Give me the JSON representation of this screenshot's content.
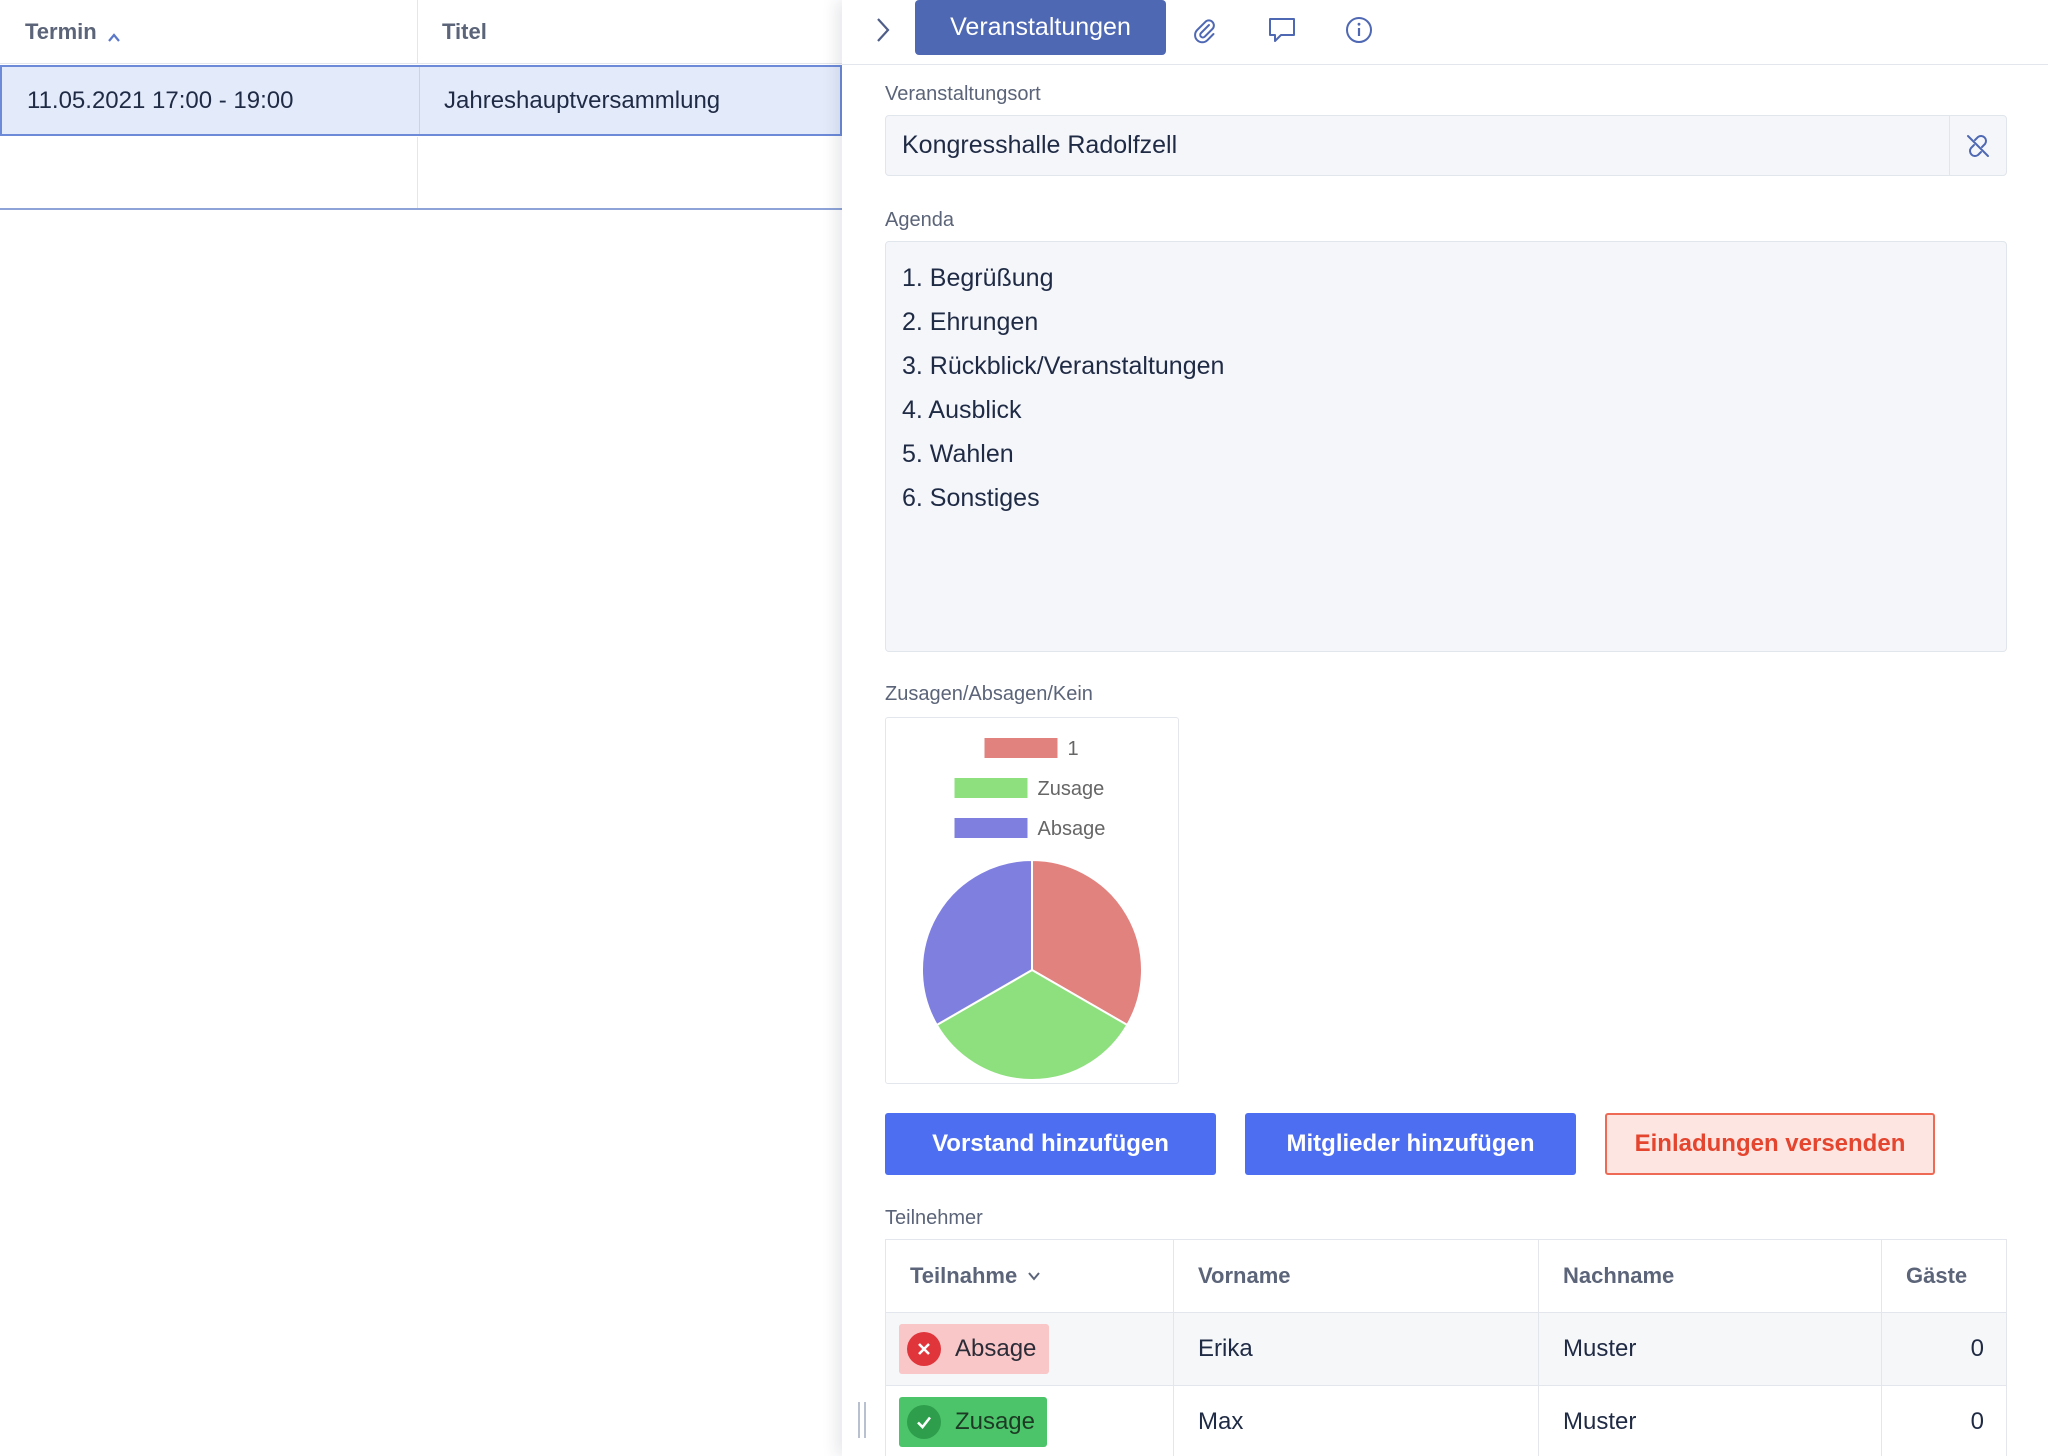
{
  "list": {
    "columns": {
      "termin": "Termin",
      "titel": "Titel"
    },
    "rows": [
      {
        "termin": "11.05.2021 17:00 - 19:00",
        "titel": "Jahreshauptversammlung"
      }
    ]
  },
  "detail": {
    "active_tab": "Veranstaltungen",
    "venue": {
      "label": "Veranstaltungsort",
      "value": "Kongresshalle Radolfzell"
    },
    "agenda": {
      "label": "Agenda",
      "lines": [
        "1. Begrüßung",
        "2. Ehrungen",
        "3. Rückblick/Veranstaltungen",
        "4. Ausblick",
        "5. Wahlen",
        "6. Sonstiges"
      ]
    },
    "chart_label": "Zusagen/Absagen/Kein",
    "buttons": {
      "vorstand": "Vorstand hinzufügen",
      "mitglieder": "Mitglieder hinzufügen",
      "einladungen": "Einladungen versenden"
    },
    "participants": {
      "label": "Teilnehmer",
      "columns": {
        "teilnahme": "Teilnahme",
        "vorname": "Vorname",
        "nachname": "Nachname",
        "gaeste": "Gäste"
      },
      "rows": [
        {
          "status": "Absage",
          "vorname": "Erika",
          "nachname": "Muster",
          "gaeste": "0"
        },
        {
          "status": "Zusage",
          "vorname": "Max",
          "nachname": "Muster",
          "gaeste": "0"
        }
      ]
    }
  },
  "chart_data": {
    "type": "pie",
    "categories": [
      "1",
      "Zusage",
      "Absage"
    ],
    "values": [
      1,
      1,
      1
    ],
    "colors": [
      "#e2827f",
      "#8ee07e",
      "#7f7fe0"
    ],
    "legend_position": "top"
  },
  "colors": {
    "primary_button": "#4d6ef0",
    "tab_active": "#4f68b3",
    "danger": "#e4452f",
    "selected_row": "#e3ebfb"
  }
}
